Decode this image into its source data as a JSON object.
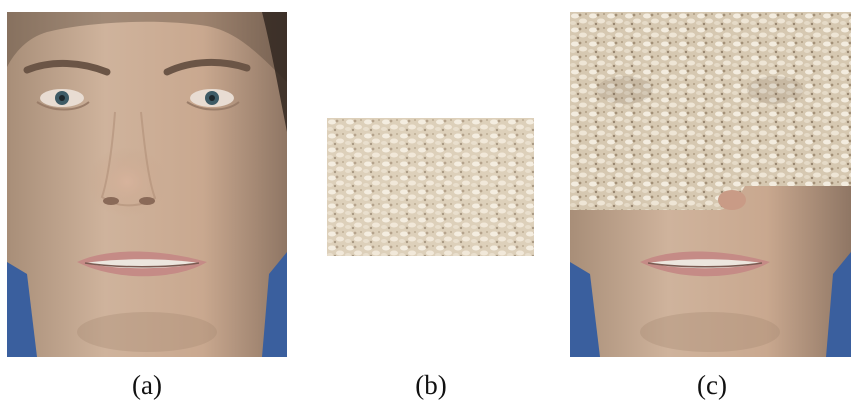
{
  "figure": {
    "panels": [
      {
        "id": "a",
        "caption": "(a)",
        "content": "face-photo"
      },
      {
        "id": "b",
        "caption": "(b)",
        "content": "rice-texture-photo"
      },
      {
        "id": "c",
        "caption": "(c)",
        "content": "face-with-rice-texture-overlay-photo"
      }
    ]
  },
  "colors": {
    "background": "#ffffff",
    "skin": "#c9a890",
    "shirt": "#3a5f9e",
    "rice": "#e8dcc8",
    "lips": "#c58b86"
  }
}
